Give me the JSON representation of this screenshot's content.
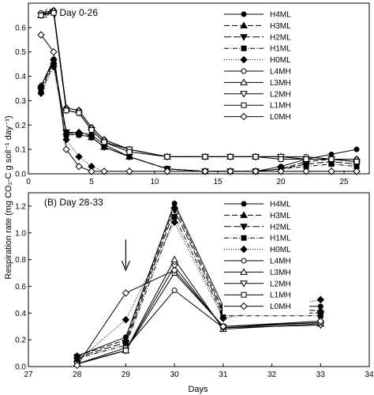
{
  "figure": {
    "ylabel": "Respiration rate (mg CO₂-C g soil⁻¹ day⁻¹)",
    "xlabel": "Days"
  },
  "legend_entries": [
    "H4ML",
    "H3ML",
    "H2ML",
    "H1ML",
    "H0ML",
    "L4MH",
    "L3MH",
    "L2MH",
    "L1MH",
    "L0MH"
  ],
  "series_styles": [
    {
      "name": "H4ML",
      "marker": "circle",
      "fill": "#000000",
      "dash": ""
    },
    {
      "name": "H3ML",
      "marker": "triangle-up",
      "fill": "#000000",
      "dash": "7,3"
    },
    {
      "name": "H2ML",
      "marker": "triangle-down",
      "fill": "#000000",
      "dash": "9,3"
    },
    {
      "name": "H1ML",
      "marker": "square",
      "fill": "#000000",
      "dash": "6,2,1,2"
    },
    {
      "name": "H0ML",
      "marker": "diamond",
      "fill": "#000000",
      "dash": "1,2"
    },
    {
      "name": "L4MH",
      "marker": "circle",
      "fill": "#ffffff",
      "dash": ""
    },
    {
      "name": "L3MH",
      "marker": "triangle-up",
      "fill": "#ffffff",
      "dash": ""
    },
    {
      "name": "L2MH",
      "marker": "triangle-down",
      "fill": "#ffffff",
      "dash": ""
    },
    {
      "name": "L1MH",
      "marker": "square",
      "fill": "#ffffff",
      "dash": ""
    },
    {
      "name": "L0MH",
      "marker": "diamond",
      "fill": "#ffffff",
      "dash": ""
    }
  ],
  "chart_data": [
    {
      "type": "line",
      "title": "(A) Day 0-26",
      "xlim": [
        0,
        27
      ],
      "ylim": [
        0,
        0.7
      ],
      "xticks": [
        0,
        5,
        10,
        15,
        20,
        25
      ],
      "yticks": [
        0.0,
        0.1,
        0.2,
        0.3,
        0.4,
        0.5,
        0.6
      ],
      "ytick_labels": [
        "0.0",
        "0.1",
        "0.2",
        "0.3",
        "0.4",
        "0.5",
        "0.6"
      ],
      "legend": "top-right",
      "x": [
        1,
        2,
        3,
        4,
        5,
        6,
        8,
        11,
        14,
        16,
        18,
        20,
        22,
        24,
        26
      ],
      "series": [
        {
          "name": "H4ML",
          "values": [
            0.36,
            0.47,
            0.17,
            0.17,
            0.16,
            0.12,
            0.07,
            0.02,
            0.01,
            0.01,
            0.01,
            0.03,
            0.06,
            0.08,
            0.1
          ]
        },
        {
          "name": "H3ML",
          "values": [
            0.36,
            0.46,
            0.17,
            0.17,
            0.15,
            0.11,
            0.07,
            0.02,
            0.01,
            0.01,
            0.01,
            0.02,
            0.05,
            0.06,
            0.05
          ]
        },
        {
          "name": "H2ML",
          "values": [
            0.35,
            0.46,
            0.17,
            0.16,
            0.15,
            0.11,
            0.07,
            0.02,
            0.01,
            0.01,
            0.01,
            0.02,
            0.04,
            0.05,
            0.04
          ]
        },
        {
          "name": "H1ML",
          "values": [
            0.34,
            0.45,
            0.16,
            0.16,
            0.15,
            0.11,
            0.07,
            0.02,
            0.01,
            0.01,
            0.01,
            0.02,
            0.03,
            0.04,
            0.03
          ]
        },
        {
          "name": "H0ML",
          "values": [
            0.33,
            0.44,
            0.14,
            0.07,
            0.03,
            0.01,
            0.01,
            0.01,
            0.01,
            0.01,
            0.01,
            0.01,
            0.01,
            0.01,
            0.01
          ]
        },
        {
          "name": "L4MH",
          "values": [
            0.66,
            0.67,
            0.27,
            0.26,
            0.19,
            0.14,
            0.1,
            0.07,
            0.07,
            0.07,
            0.07,
            0.07,
            0.07,
            0.06,
            0.06
          ]
        },
        {
          "name": "L3MH",
          "values": [
            0.65,
            0.67,
            0.27,
            0.26,
            0.19,
            0.14,
            0.1,
            0.07,
            0.07,
            0.07,
            0.07,
            0.07,
            0.06,
            0.06,
            0.06
          ]
        },
        {
          "name": "L2MH",
          "values": [
            0.65,
            0.66,
            0.26,
            0.25,
            0.18,
            0.13,
            0.1,
            0.07,
            0.07,
            0.07,
            0.07,
            0.07,
            0.06,
            0.06,
            0.05
          ]
        },
        {
          "name": "L1MH",
          "values": [
            0.65,
            0.66,
            0.26,
            0.25,
            0.18,
            0.13,
            0.09,
            0.07,
            0.07,
            0.07,
            0.07,
            0.06,
            0.06,
            0.06,
            0.05
          ]
        },
        {
          "name": "L0MH",
          "values": [
            0.57,
            0.5,
            0.1,
            0.03,
            0.01,
            0.01,
            0.01,
            0.01,
            0.01,
            0.01,
            0.01,
            0.01,
            0.01,
            0.01,
            0.01
          ]
        }
      ]
    },
    {
      "type": "line",
      "title": "(B) Day 28-33",
      "xlim": [
        27,
        34
      ],
      "ylim": [
        0,
        1.3
      ],
      "xticks": [
        27,
        28,
        29,
        30,
        31,
        32,
        33,
        34
      ],
      "yticks": [
        0.0,
        0.2,
        0.4,
        0.6,
        0.8,
        1.0,
        1.2
      ],
      "ytick_labels": [
        "0.0",
        "0.2",
        "0.4",
        "0.6",
        "0.8",
        "1.0",
        "1.2"
      ],
      "legend": "top-right",
      "annotation": "arrow at day 29",
      "arrow_x": 29,
      "x": [
        28,
        29,
        30,
        31,
        33
      ],
      "series": [
        {
          "name": "H4ML",
          "values": [
            0.08,
            0.22,
            1.22,
            0.45,
            0.45
          ]
        },
        {
          "name": "H3ML",
          "values": [
            0.08,
            0.2,
            1.2,
            0.42,
            0.42
          ]
        },
        {
          "name": "H2ML",
          "values": [
            0.07,
            0.18,
            1.17,
            0.4,
            0.4
          ]
        },
        {
          "name": "H1ML",
          "values": [
            0.06,
            0.16,
            1.12,
            0.38,
            0.38
          ]
        },
        {
          "name": "H0ML",
          "values": [
            0.04,
            0.35,
            1.08,
            0.36,
            0.5
          ]
        },
        {
          "name": "L4MH",
          "values": [
            0.02,
            0.14,
            0.57,
            0.29,
            0.33
          ]
        },
        {
          "name": "L3MH",
          "values": [
            0.02,
            0.12,
            0.8,
            0.28,
            0.32
          ]
        },
        {
          "name": "L2MH",
          "values": [
            0.02,
            0.12,
            0.75,
            0.29,
            0.31
          ]
        },
        {
          "name": "L1MH",
          "values": [
            0.02,
            0.12,
            0.7,
            0.3,
            0.33
          ]
        },
        {
          "name": "L0MH",
          "values": [
            0.01,
            0.55,
            0.72,
            0.3,
            0.34
          ]
        }
      ]
    }
  ]
}
